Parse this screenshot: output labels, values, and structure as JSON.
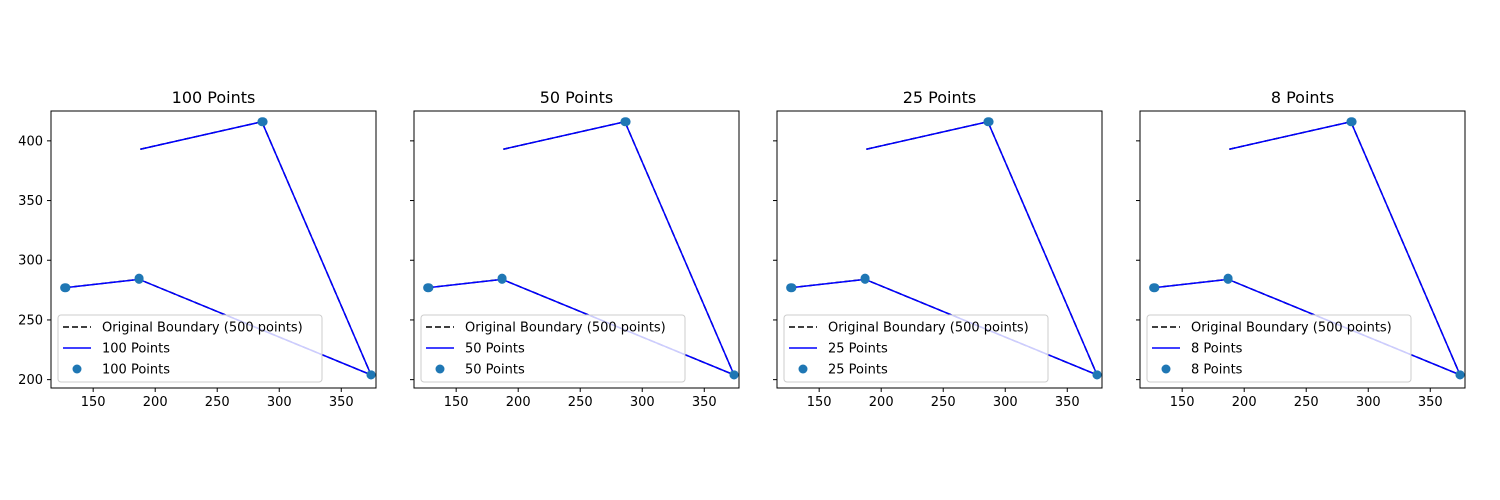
{
  "chart_data": [
    {
      "type": "line",
      "title": "100 Points",
      "xlabel": "",
      "ylabel": "",
      "xlim": [
        116,
        378
      ],
      "ylim": [
        193,
        425
      ],
      "xticks": [
        150,
        200,
        250,
        300,
        350
      ],
      "yticks": [
        200,
        250,
        300,
        350,
        400
      ],
      "grid": false,
      "legend_position": "lower-left",
      "series": [
        {
          "name": "Original Boundary (500 points)",
          "style": "dashed",
          "color": "#000000",
          "x": [
            188,
            286,
            374,
            187,
            127
          ],
          "y": [
            393,
            416,
            204,
            284,
            277
          ]
        },
        {
          "name": "100 Points",
          "style": "solid",
          "color": "#0000ff",
          "x": [
            188,
            286,
            374,
            187,
            127
          ],
          "y": [
            393,
            416,
            204,
            284,
            277
          ]
        },
        {
          "name": "100 Points",
          "style": "scatter",
          "color": "#1f77b4",
          "x": [
            286,
            287,
            374,
            374,
            187,
            187,
            127,
            128
          ],
          "y": [
            416,
            416,
            204,
            204,
            284,
            285,
            277,
            277
          ]
        }
      ]
    },
    {
      "type": "line",
      "title": "50 Points",
      "xlabel": "",
      "ylabel": "",
      "xlim": [
        116,
        378
      ],
      "ylim": [
        193,
        425
      ],
      "xticks": [
        150,
        200,
        250,
        300,
        350
      ],
      "yticks": [
        200,
        250,
        300,
        350,
        400
      ],
      "grid": false,
      "legend_position": "lower-left",
      "series": [
        {
          "name": "Original Boundary (500 points)",
          "style": "dashed",
          "color": "#000000",
          "x": [
            188,
            286,
            374,
            187,
            127
          ],
          "y": [
            393,
            416,
            204,
            284,
            277
          ]
        },
        {
          "name": "50 Points",
          "style": "solid",
          "color": "#0000ff",
          "x": [
            188,
            286,
            374,
            187,
            127
          ],
          "y": [
            393,
            416,
            204,
            284,
            277
          ]
        },
        {
          "name": "50 Points",
          "style": "scatter",
          "color": "#1f77b4",
          "x": [
            286,
            287,
            374,
            374,
            187,
            187,
            127,
            128
          ],
          "y": [
            416,
            416,
            204,
            204,
            284,
            285,
            277,
            277
          ]
        }
      ]
    },
    {
      "type": "line",
      "title": "25 Points",
      "xlabel": "",
      "ylabel": "",
      "xlim": [
        116,
        378
      ],
      "ylim": [
        193,
        425
      ],
      "xticks": [
        150,
        200,
        250,
        300,
        350
      ],
      "yticks": [
        200,
        250,
        300,
        350,
        400
      ],
      "grid": false,
      "legend_position": "lower-left",
      "series": [
        {
          "name": "Original Boundary (500 points)",
          "style": "dashed",
          "color": "#000000",
          "x": [
            188,
            286,
            374,
            187,
            127
          ],
          "y": [
            393,
            416,
            204,
            284,
            277
          ]
        },
        {
          "name": "25 Points",
          "style": "solid",
          "color": "#0000ff",
          "x": [
            188,
            286,
            374,
            187,
            127
          ],
          "y": [
            393,
            416,
            204,
            284,
            277
          ]
        },
        {
          "name": "25 Points",
          "style": "scatter",
          "color": "#1f77b4",
          "x": [
            286,
            287,
            374,
            374,
            187,
            187,
            127,
            128
          ],
          "y": [
            416,
            416,
            204,
            204,
            284,
            285,
            277,
            277
          ]
        }
      ]
    },
    {
      "type": "line",
      "title": "8 Points",
      "xlabel": "",
      "ylabel": "",
      "xlim": [
        116,
        378
      ],
      "ylim": [
        193,
        425
      ],
      "xticks": [
        150,
        200,
        250,
        300,
        350
      ],
      "yticks": [
        200,
        250,
        300,
        350,
        400
      ],
      "grid": false,
      "legend_position": "lower-left",
      "series": [
        {
          "name": "Original Boundary (500 points)",
          "style": "dashed",
          "color": "#000000",
          "x": [
            188,
            286,
            374,
            187,
            127
          ],
          "y": [
            393,
            416,
            204,
            284,
            277
          ]
        },
        {
          "name": "8 Points",
          "style": "solid",
          "color": "#0000ff",
          "x": [
            188,
            286,
            374,
            187,
            127
          ],
          "y": [
            393,
            416,
            204,
            284,
            277
          ]
        },
        {
          "name": "8 Points",
          "style": "scatter",
          "color": "#1f77b4",
          "x": [
            286,
            287,
            374,
            374,
            187,
            187,
            127,
            128
          ],
          "y": [
            416,
            416,
            204,
            204,
            284,
            285,
            277,
            277
          ]
        }
      ]
    }
  ]
}
